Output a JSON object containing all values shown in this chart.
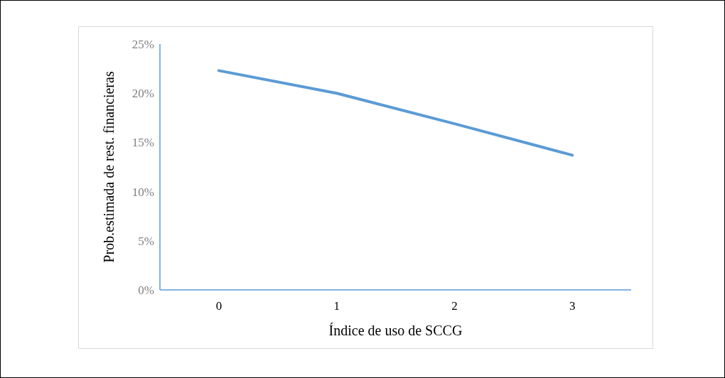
{
  "chart_data": {
    "type": "line",
    "xlabel": "Índice de uso de SCCG",
    "ylabel": "Prob.estimada de rest. financieras",
    "categories": [
      "0",
      "1",
      "2",
      "3"
    ],
    "series": [
      {
        "color": "#5b9bd5",
        "values": [
          22.3,
          20.0,
          16.9,
          13.7
        ]
      }
    ],
    "ylim": [
      0,
      25
    ],
    "yticks": [
      {
        "value": 0,
        "label": "0%"
      },
      {
        "value": 5,
        "label": "5%"
      },
      {
        "value": 10,
        "label": "10%"
      },
      {
        "value": 15,
        "label": "15%"
      },
      {
        "value": 20,
        "label": "20%"
      },
      {
        "value": 25,
        "label": "25%"
      }
    ],
    "grid": false,
    "marker": "none",
    "line_style": "solid"
  }
}
